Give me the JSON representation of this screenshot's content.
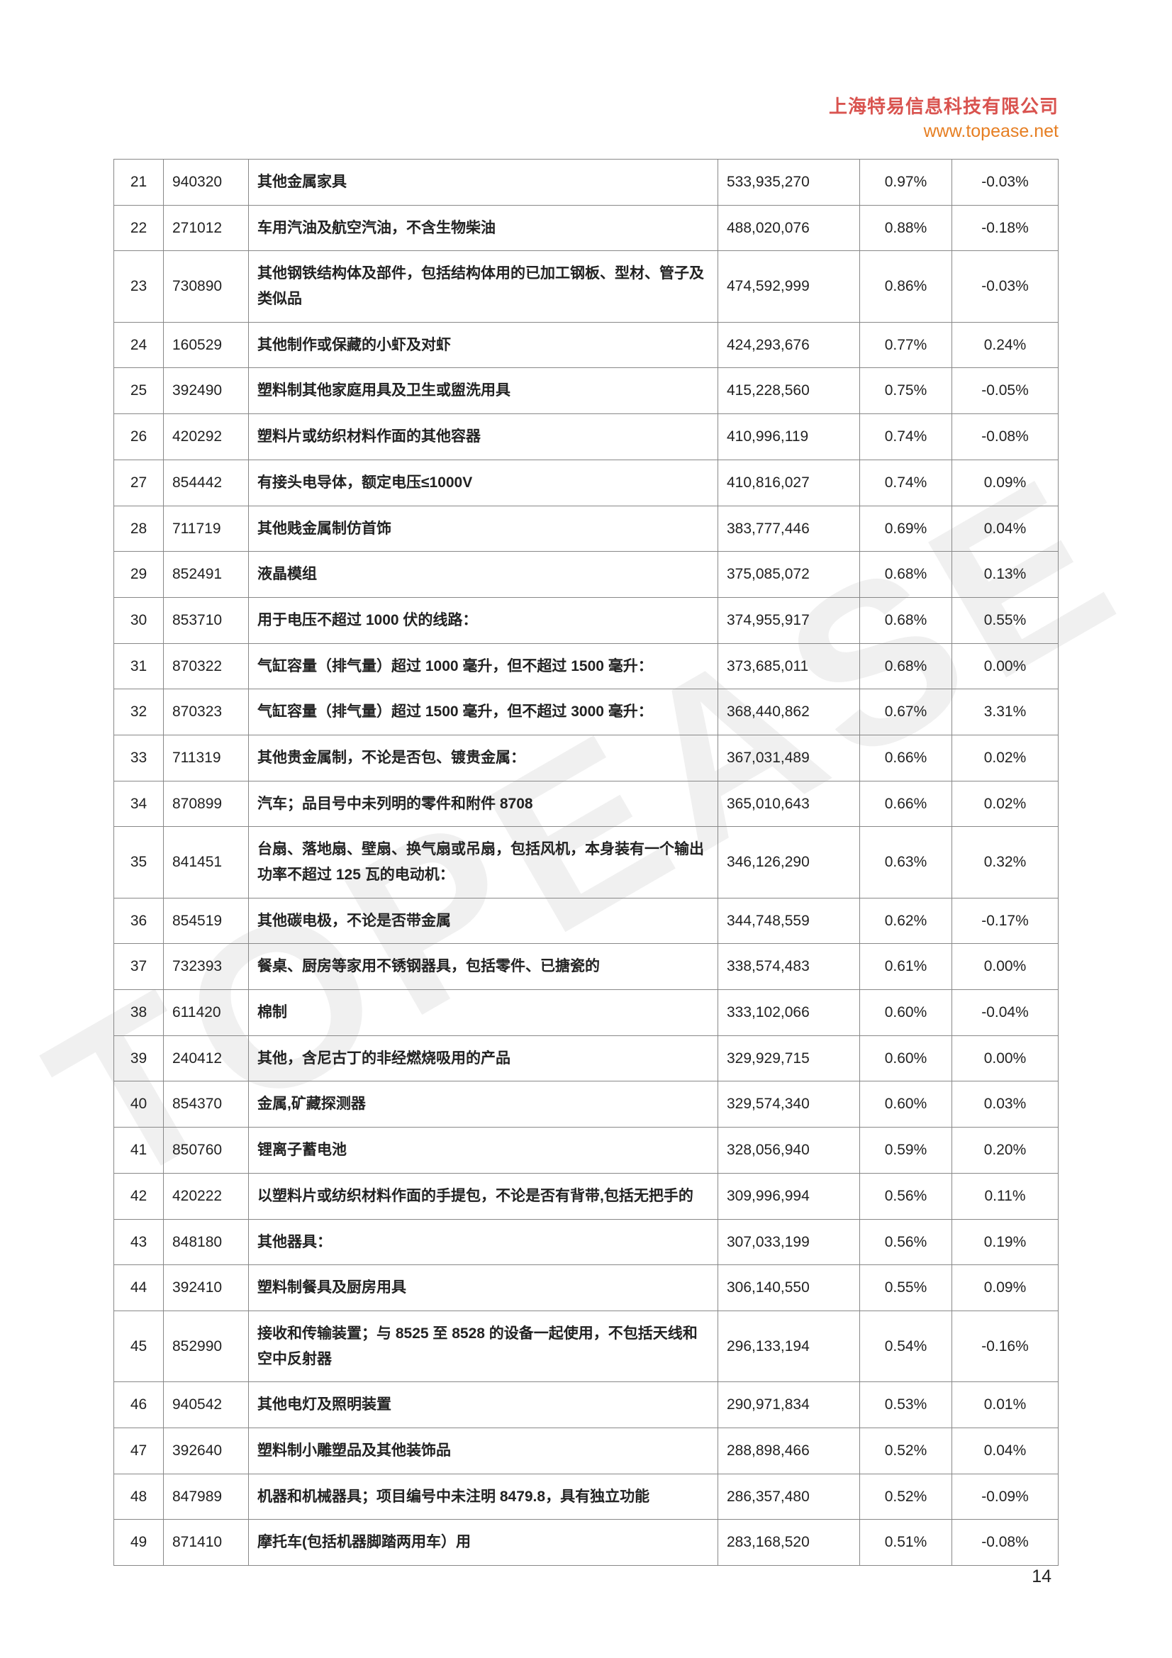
{
  "header": {
    "company": "上海特易信息科技有限公司",
    "url": "www.topease.net"
  },
  "watermark_text": "TOPEASE",
  "page_number": "14",
  "table": {
    "columns": {
      "idx_width": 70,
      "code_width": 120,
      "val_width": 200,
      "pct1_width": 130,
      "pct2_width": 150,
      "border_color": "#888888",
      "text_color": "#222222",
      "desc_weight": 700,
      "font_size": 21
    },
    "rows": [
      {
        "idx": "21",
        "code": "940320",
        "desc": "其他金属家具",
        "val": "533,935,270",
        "pct1": "0.97%",
        "pct2": "-0.03%"
      },
      {
        "idx": "22",
        "code": "271012",
        "desc": "车用汽油及航空汽油，不含生物柴油",
        "val": "488,020,076",
        "pct1": "0.88%",
        "pct2": "-0.18%"
      },
      {
        "idx": "23",
        "code": "730890",
        "desc": "其他钢铁结构体及部件，包括结构体用的已加工钢板、型材、管子及类似品",
        "val": "474,592,999",
        "pct1": "0.86%",
        "pct2": "-0.03%"
      },
      {
        "idx": "24",
        "code": "160529",
        "desc": "其他制作或保藏的小虾及对虾",
        "val": "424,293,676",
        "pct1": "0.77%",
        "pct2": "0.24%"
      },
      {
        "idx": "25",
        "code": "392490",
        "desc": "塑料制其他家庭用具及卫生或盥洗用具",
        "val": "415,228,560",
        "pct1": "0.75%",
        "pct2": "-0.05%"
      },
      {
        "idx": "26",
        "code": "420292",
        "desc": "塑料片或纺织材料作面的其他容器",
        "val": "410,996,119",
        "pct1": "0.74%",
        "pct2": "-0.08%"
      },
      {
        "idx": "27",
        "code": "854442",
        "desc": "有接头电导体，额定电压≤1000V",
        "val": "410,816,027",
        "pct1": "0.74%",
        "pct2": "0.09%"
      },
      {
        "idx": "28",
        "code": "711719",
        "desc": "其他贱金属制仿首饰",
        "val": "383,777,446",
        "pct1": "0.69%",
        "pct2": "0.04%"
      },
      {
        "idx": "29",
        "code": "852491",
        "desc": "液晶模组",
        "val": "375,085,072",
        "pct1": "0.68%",
        "pct2": "0.13%"
      },
      {
        "idx": "30",
        "code": "853710",
        "desc": "用于电压不超过 1000 伏的线路：",
        "val": "374,955,917",
        "pct1": "0.68%",
        "pct2": "0.55%"
      },
      {
        "idx": "31",
        "code": "870322",
        "desc": "气缸容量（排气量）超过 1000 毫升，但不超过 1500 毫升：",
        "val": "373,685,011",
        "pct1": "0.68%",
        "pct2": "0.00%"
      },
      {
        "idx": "32",
        "code": "870323",
        "desc": "气缸容量（排气量）超过 1500 毫升，但不超过 3000 毫升：",
        "val": "368,440,862",
        "pct1": "0.67%",
        "pct2": "3.31%"
      },
      {
        "idx": "33",
        "code": "711319",
        "desc": "其他贵金属制，不论是否包、镀贵金属：",
        "val": "367,031,489",
        "pct1": "0.66%",
        "pct2": "0.02%"
      },
      {
        "idx": "34",
        "code": "870899",
        "desc": "汽车；品目号中未列明的零件和附件 8708",
        "val": "365,010,643",
        "pct1": "0.66%",
        "pct2": "0.02%"
      },
      {
        "idx": "35",
        "code": "841451",
        "desc": "台扇、落地扇、壁扇、换气扇或吊扇，包括风机，本身装有一个输出功率不超过 125 瓦的电动机：",
        "val": "346,126,290",
        "pct1": "0.63%",
        "pct2": "0.32%"
      },
      {
        "idx": "36",
        "code": "854519",
        "desc": "其他碳电极，不论是否带金属",
        "val": "344,748,559",
        "pct1": "0.62%",
        "pct2": "-0.17%"
      },
      {
        "idx": "37",
        "code": "732393",
        "desc": "餐桌、厨房等家用不锈钢器具，包括零件、已搪瓷的",
        "val": "338,574,483",
        "pct1": "0.61%",
        "pct2": "0.00%"
      },
      {
        "idx": "38",
        "code": "611420",
        "desc": "棉制",
        "val": "333,102,066",
        "pct1": "0.60%",
        "pct2": "-0.04%"
      },
      {
        "idx": "39",
        "code": "240412",
        "desc": "其他，含尼古丁的非经燃烧吸用的产品",
        "val": "329,929,715",
        "pct1": "0.60%",
        "pct2": "0.00%"
      },
      {
        "idx": "40",
        "code": "854370",
        "desc": "金属,矿藏探测器",
        "val": "329,574,340",
        "pct1": "0.60%",
        "pct2": "0.03%"
      },
      {
        "idx": "41",
        "code": "850760",
        "desc": "锂离子蓄电池",
        "val": "328,056,940",
        "pct1": "0.59%",
        "pct2": "0.20%"
      },
      {
        "idx": "42",
        "code": "420222",
        "desc": "以塑料片或纺织材料作面的手提包，不论是否有背带,包括无把手的",
        "val": "309,996,994",
        "pct1": "0.56%",
        "pct2": "0.11%"
      },
      {
        "idx": "43",
        "code": "848180",
        "desc": "其他器具：",
        "val": "307,033,199",
        "pct1": "0.56%",
        "pct2": "0.19%"
      },
      {
        "idx": "44",
        "code": "392410",
        "desc": "塑料制餐具及厨房用具",
        "val": "306,140,550",
        "pct1": "0.55%",
        "pct2": "0.09%"
      },
      {
        "idx": "45",
        "code": "852990",
        "desc": "接收和传输装置；与 8525 至 8528 的设备一起使用，不包括天线和空中反射器",
        "val": "296,133,194",
        "pct1": "0.54%",
        "pct2": "-0.16%"
      },
      {
        "idx": "46",
        "code": "940542",
        "desc": "其他电灯及照明装置",
        "val": "290,971,834",
        "pct1": "0.53%",
        "pct2": "0.01%"
      },
      {
        "idx": "47",
        "code": "392640",
        "desc": "塑料制小雕塑品及其他装饰品",
        "val": "288,898,466",
        "pct1": "0.52%",
        "pct2": "0.04%"
      },
      {
        "idx": "48",
        "code": "847989",
        "desc": "机器和机械器具；项目编号中未注明 8479.8，具有独立功能",
        "val": "286,357,480",
        "pct1": "0.52%",
        "pct2": "-0.09%"
      },
      {
        "idx": "49",
        "code": "871410",
        "desc": "摩托车(包括机器脚踏两用车）用",
        "val": "283,168,520",
        "pct1": "0.51%",
        "pct2": "-0.08%"
      }
    ]
  }
}
